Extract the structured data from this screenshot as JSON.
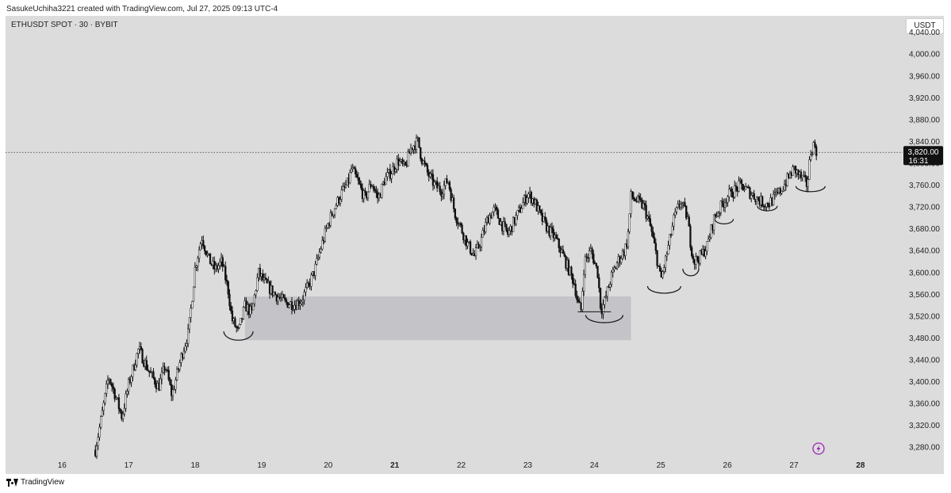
{
  "header": {
    "credit": "SasukeUchiha3221 created with TradingView.com, Jul 27, 2025 09:13 UTC-4"
  },
  "symbol": "ETHUSDT SPOT · 30 · BYBIT",
  "currency": "USDT",
  "footer": {
    "brand": "TradingView"
  },
  "colors": {
    "background": "#dcdcdc",
    "candle": "#111111",
    "zone": "#c4c4c8",
    "lightning": "#9c27b0"
  },
  "icons": {
    "lightning": "lightning-icon",
    "logo": "tradingview-logo-icon"
  },
  "current_price": {
    "value": "3,820.00",
    "countdown": "16:31"
  },
  "chart_data": {
    "type": "candlestick",
    "title": "",
    "xlabel": "",
    "ylabel": "",
    "ylim": [
      3260,
      4070
    ],
    "y_ticks": [
      "3,280.00",
      "3,320.00",
      "3,360.00",
      "3,400.00",
      "3,440.00",
      "3,480.00",
      "3,520.00",
      "3,560.00",
      "3,600.00",
      "3,640.00",
      "3,680.00",
      "3,720.00",
      "3,760.00",
      "3,800.00",
      "3,840.00",
      "3,880.00",
      "3,920.00",
      "3,960.00",
      "4,000.00",
      "4,040.00"
    ],
    "x_ticks": [
      "16",
      "17",
      "18",
      "19",
      "20",
      "21",
      "22",
      "23",
      "24",
      "25",
      "26",
      "27",
      "28"
    ],
    "x_tick_values": [
      16,
      17,
      18,
      19,
      20,
      21,
      22,
      23,
      24,
      25,
      26,
      27,
      28
    ],
    "xlim": [
      15.15,
      28.3
    ],
    "current_line": 3820,
    "demand_zone": {
      "x": [
        18.75,
        24.55
      ],
      "y": [
        3476,
        3556
      ]
    },
    "price_path": [
      [
        16.5,
        3275
      ],
      [
        16.6,
        3340
      ],
      [
        16.7,
        3410
      ],
      [
        16.8,
        3375
      ],
      [
        16.9,
        3335
      ],
      [
        17.0,
        3395
      ],
      [
        17.15,
        3460
      ],
      [
        17.3,
        3420
      ],
      [
        17.45,
        3390
      ],
      [
        17.55,
        3430
      ],
      [
        17.65,
        3375
      ],
      [
        17.7,
        3400
      ],
      [
        17.8,
        3450
      ],
      [
        17.9,
        3490
      ],
      [
        17.95,
        3550
      ],
      [
        18.0,
        3610
      ],
      [
        18.1,
        3665
      ],
      [
        18.2,
        3625
      ],
      [
        18.3,
        3605
      ],
      [
        18.4,
        3620
      ],
      [
        18.5,
        3565
      ],
      [
        18.55,
        3515
      ],
      [
        18.65,
        3490
      ],
      [
        18.75,
        3540
      ],
      [
        18.85,
        3525
      ],
      [
        18.95,
        3600
      ],
      [
        19.05,
        3580
      ],
      [
        19.2,
        3560
      ],
      [
        19.35,
        3545
      ],
      [
        19.5,
        3542
      ],
      [
        19.6,
        3550
      ],
      [
        19.7,
        3575
      ],
      [
        19.8,
        3605
      ],
      [
        19.9,
        3650
      ],
      [
        20.0,
        3690
      ],
      [
        20.1,
        3720
      ],
      [
        20.2,
        3745
      ],
      [
        20.3,
        3765
      ],
      [
        20.35,
        3790
      ],
      [
        20.45,
        3765
      ],
      [
        20.55,
        3735
      ],
      [
        20.65,
        3765
      ],
      [
        20.75,
        3735
      ],
      [
        20.85,
        3770
      ],
      [
        20.95,
        3785
      ],
      [
        21.05,
        3805
      ],
      [
        21.15,
        3790
      ],
      [
        21.25,
        3830
      ],
      [
        21.35,
        3840
      ],
      [
        21.4,
        3810
      ],
      [
        21.5,
        3780
      ],
      [
        21.6,
        3760
      ],
      [
        21.7,
        3750
      ],
      [
        21.8,
        3770
      ],
      [
        21.9,
        3710
      ],
      [
        22.0,
        3680
      ],
      [
        22.1,
        3650
      ],
      [
        22.2,
        3630
      ],
      [
        22.3,
        3660
      ],
      [
        22.4,
        3700
      ],
      [
        22.5,
        3715
      ],
      [
        22.6,
        3690
      ],
      [
        22.7,
        3670
      ],
      [
        22.8,
        3695
      ],
      [
        22.9,
        3720
      ],
      [
        23.0,
        3745
      ],
      [
        23.1,
        3730
      ],
      [
        23.2,
        3700
      ],
      [
        23.3,
        3680
      ],
      [
        23.4,
        3665
      ],
      [
        23.5,
        3640
      ],
      [
        23.6,
        3610
      ],
      [
        23.7,
        3580
      ],
      [
        23.75,
        3545
      ],
      [
        23.8,
        3530
      ],
      [
        23.85,
        3620
      ],
      [
        23.95,
        3640
      ],
      [
        24.05,
        3600
      ],
      [
        24.1,
        3530
      ],
      [
        24.15,
        3545
      ],
      [
        24.25,
        3590
      ],
      [
        24.35,
        3620
      ],
      [
        24.45,
        3640
      ],
      [
        24.5,
        3660
      ],
      [
        24.55,
        3740
      ],
      [
        24.65,
        3730
      ],
      [
        24.75,
        3720
      ],
      [
        24.85,
        3680
      ],
      [
        24.95,
        3620
      ],
      [
        25.0,
        3585
      ],
      [
        25.1,
        3640
      ],
      [
        25.2,
        3700
      ],
      [
        25.3,
        3730
      ],
      [
        25.4,
        3700
      ],
      [
        25.45,
        3650
      ],
      [
        25.5,
        3620
      ],
      [
        25.6,
        3630
      ],
      [
        25.7,
        3650
      ],
      [
        25.8,
        3700
      ],
      [
        25.9,
        3720
      ],
      [
        26.0,
        3740
      ],
      [
        26.1,
        3750
      ],
      [
        26.2,
        3760
      ],
      [
        26.3,
        3750
      ],
      [
        26.4,
        3740
      ],
      [
        26.5,
        3730
      ],
      [
        26.6,
        3725
      ],
      [
        26.7,
        3735
      ],
      [
        26.8,
        3750
      ],
      [
        26.9,
        3770
      ],
      [
        27.0,
        3790
      ],
      [
        27.1,
        3775
      ],
      [
        27.2,
        3760
      ],
      [
        27.25,
        3820
      ],
      [
        27.3,
        3835
      ],
      [
        27.35,
        3820
      ]
    ],
    "annotations": [
      {
        "shape": "arc",
        "cx": 18.65,
        "cy": 3492,
        "rx": 0.22,
        "ry": 16
      },
      {
        "shape": "arc",
        "cx": 24.15,
        "cy": 3522,
        "rx": 0.28,
        "ry": 14
      },
      {
        "shape": "arc",
        "cx": 25.05,
        "cy": 3575,
        "rx": 0.25,
        "ry": 13
      },
      {
        "shape": "arc",
        "cx": 25.45,
        "cy": 3607,
        "rx": 0.12,
        "ry": 13
      },
      {
        "shape": "arc",
        "cx": 25.95,
        "cy": 3698,
        "rx": 0.14,
        "ry": 9
      },
      {
        "shape": "arc",
        "cx": 26.6,
        "cy": 3722,
        "rx": 0.15,
        "ry": 9
      },
      {
        "shape": "arc",
        "cx": 27.25,
        "cy": 3758,
        "rx": 0.22,
        "ry": 10
      },
      {
        "shape": "line",
        "x": [
          23.75,
          24.25
        ],
        "y": [
          3528,
          3528
        ]
      }
    ]
  }
}
